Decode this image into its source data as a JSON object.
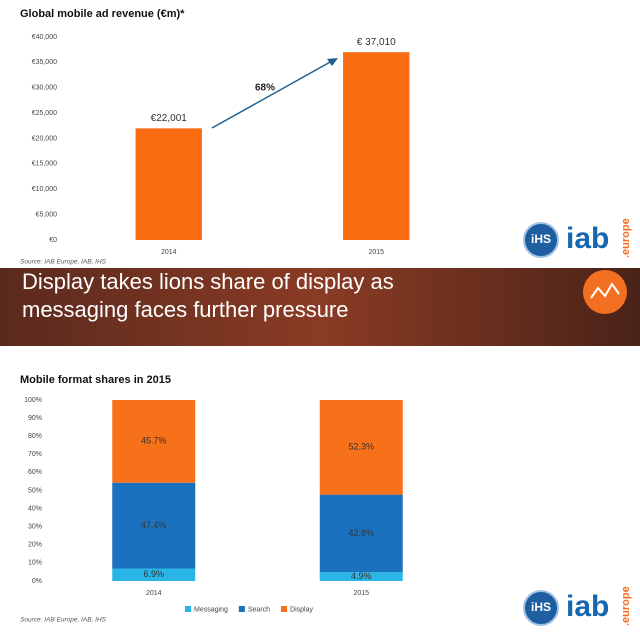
{
  "chart_data": [
    {
      "type": "bar",
      "title": "Global mobile ad revenue (€m)*",
      "categories": [
        "2014",
        "2015"
      ],
      "values": [
        22001,
        37010
      ],
      "value_labels": [
        "€22,001",
        "€ 37,010"
      ],
      "color": "#f96c12",
      "ylim": [
        0,
        40000
      ],
      "yticks": [
        {
          "value": 0,
          "label": "€0"
        },
        {
          "value": 5000,
          "label": "€5,000"
        },
        {
          "value": 10000,
          "label": "€10,000"
        },
        {
          "value": 15000,
          "label": "€15,000"
        },
        {
          "value": 20000,
          "label": "€20,000"
        },
        {
          "value": 25000,
          "label": "€25,000"
        },
        {
          "value": 30000,
          "label": "€30,000"
        },
        {
          "value": 35000,
          "label": "€35,000"
        },
        {
          "value": 40000,
          "label": "€40,000"
        }
      ],
      "annotation": "68%",
      "source": "Source: IAB Europe, IAB, IHS"
    },
    {
      "type": "stacked_bar",
      "title": "Mobile format shares in 2015",
      "categories": [
        "2014",
        "2015"
      ],
      "series": [
        {
          "name": "Messaging",
          "color": "#2bb5e6",
          "values": [
            6.9,
            4.9
          ],
          "value_labels": [
            "6.9%",
            "4.9%"
          ]
        },
        {
          "name": "Search",
          "color": "#1a72bf",
          "values": [
            47.4,
            42.8
          ],
          "value_labels": [
            "47.4%",
            "42.8%"
          ]
        },
        {
          "name": "Display",
          "color": "#f7701a",
          "values": [
            45.7,
            52.3
          ],
          "value_labels": [
            "45.7%",
            "52.3%"
          ]
        }
      ],
      "ylim": [
        0,
        100
      ],
      "yticks": [
        {
          "value": 0,
          "label": "0%"
        },
        {
          "value": 10,
          "label": "10%"
        },
        {
          "value": 20,
          "label": "20%"
        },
        {
          "value": 30,
          "label": "30%"
        },
        {
          "value": 40,
          "label": "40%"
        },
        {
          "value": 50,
          "label": "50%"
        },
        {
          "value": 60,
          "label": "60%"
        },
        {
          "value": 70,
          "label": "70%"
        },
        {
          "value": 80,
          "label": "80%"
        },
        {
          "value": 90,
          "label": "90%"
        },
        {
          "value": 100,
          "label": "100%"
        }
      ],
      "legend": "bottom",
      "source": "Source: IAB Europe, IAB, IHS"
    }
  ],
  "banner": {
    "lines": [
      "Display takes lions share of display as",
      "messaging faces further pressure"
    ]
  },
  "logo": {
    "ihs": "iHS",
    "iab": "iab",
    "europe": ".europe"
  }
}
